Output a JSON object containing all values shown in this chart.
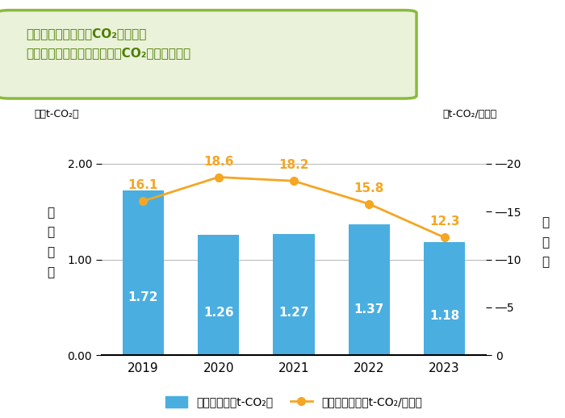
{
  "years": [
    "2019",
    "2020",
    "2021",
    "2022",
    "2023"
  ],
  "bar_values": [
    1.72,
    1.26,
    1.27,
    1.37,
    1.18
  ],
  "line_values": [
    16.1,
    18.6,
    18.2,
    15.8,
    12.3
  ],
  "bar_color": "#4aaee0",
  "line_color": "#f5a623",
  "title_line1": "作業所・オフィスのCO₂総排出量",
  "title_line2": "および施工高１億円あたりのCO₂原単位排出量",
  "ylabel_left": "（万t-CO₂）",
  "ylabel_right": "（t-CO₂/億円）",
  "ylim_left": [
    0.0,
    2.4
  ],
  "ylim_right": [
    0,
    24
  ],
  "yticks_left": [
    0.0,
    1.0,
    2.0
  ],
  "yticks_right": [
    0,
    5,
    10,
    15,
    20
  ],
  "left_axis_label": "総\n排\n出\n量",
  "right_axis_label": "原\n単\n位",
  "legend_bar": "総排出量（万t-CO₂）",
  "legend_line": "原単位排出量（t-CO₂/億円）",
  "title_bg_color": "#eaf2da",
  "title_border_color": "#8aba3c",
  "title_text_color": "#4e7d00",
  "background_color": "#ffffff",
  "bar_label_color": "#ffffff",
  "line_label_color": "#f5a623",
  "tick_label_right_prefix": "―"
}
